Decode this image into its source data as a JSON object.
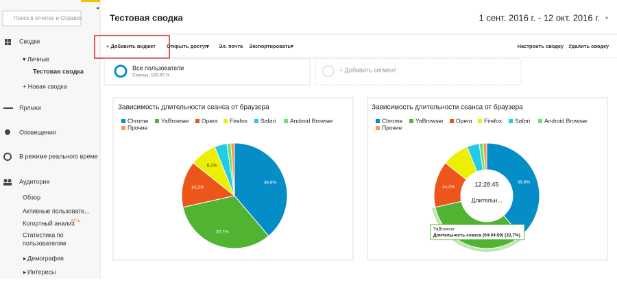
{
  "sidebar": {
    "search_placeholder": "Поиск в отчетах и Справке",
    "items": [
      {
        "label": "Сводки"
      },
      {
        "label": "Личные"
      },
      {
        "label": "Тестовая сводка"
      },
      {
        "label": "+ Новая сводка"
      },
      {
        "label": "Ярлыки"
      },
      {
        "label": "Оповещения"
      },
      {
        "label": "В режиме реального време"
      },
      {
        "label": "Аудитория"
      },
      {
        "label": "Обзор"
      },
      {
        "label": "Активные пользовате..."
      },
      {
        "label": "Когортный анализ",
        "badge": "BETA"
      },
      {
        "lines": [
          "Статистика по",
          "пользователям"
        ]
      },
      {
        "label": "Демография"
      },
      {
        "label": "Интересы"
      }
    ]
  },
  "header": {
    "title": "Тестовая сводка",
    "date_range": "1 сент. 2016 г. - 12 окт. 2016 г."
  },
  "toolbar": {
    "add_widget": "+ Добавить виджет",
    "share": "Открыть доступ",
    "email": "Эл. почта",
    "export": "Экспортировать",
    "customize": "Настроить сводку",
    "delete": "Удалить сводку"
  },
  "segments": {
    "active_name": "Все пользователи",
    "active_detail": "Сеансы: 100,00 %",
    "add": "+ Добавить сегмент"
  },
  "widgets": [
    {
      "type": "pie",
      "title": "Зависимость длительности сеанса от браузера",
      "categories": [
        "Chrome",
        "YaBrowser",
        "Opera",
        "Firefox",
        "Safari",
        "Android Browser",
        "Прочие"
      ],
      "values": [
        38.8,
        32.7,
        14.2,
        8.2,
        3.8,
        1.2,
        1.1
      ],
      "value_labels": [
        "38,8%",
        "32,7%",
        "14,2%",
        "8,2%",
        null,
        null,
        null
      ],
      "colors": [
        "#058dc7",
        "#50b432",
        "#ed561b",
        "#edef00",
        "#24cbe5",
        "#64e572",
        "#ff9655"
      ]
    },
    {
      "type": "donut",
      "title": "Зависимость длительности сеанса от браузера",
      "categories": [
        "Chrome",
        "YaBrowser",
        "Opera",
        "Firefox",
        "Safari",
        "Android Browser",
        "Прочие"
      ],
      "values": [
        38.8,
        32.7,
        14.2,
        8.2,
        3.8,
        1.2,
        1.1
      ],
      "value_labels": [
        "38,8%",
        null,
        "14,2%",
        null,
        null,
        null,
        null
      ],
      "colors": [
        "#058dc7",
        "#50b432",
        "#ed561b",
        "#edef00",
        "#24cbe5",
        "#64e572",
        "#ff9655"
      ],
      "center_value": "12:28:45",
      "center_label": "Длительн...",
      "tooltip": {
        "title": "YaBrowser",
        "text": "Длительность сеанса (04:04:59) (32,7%)"
      }
    }
  ]
}
